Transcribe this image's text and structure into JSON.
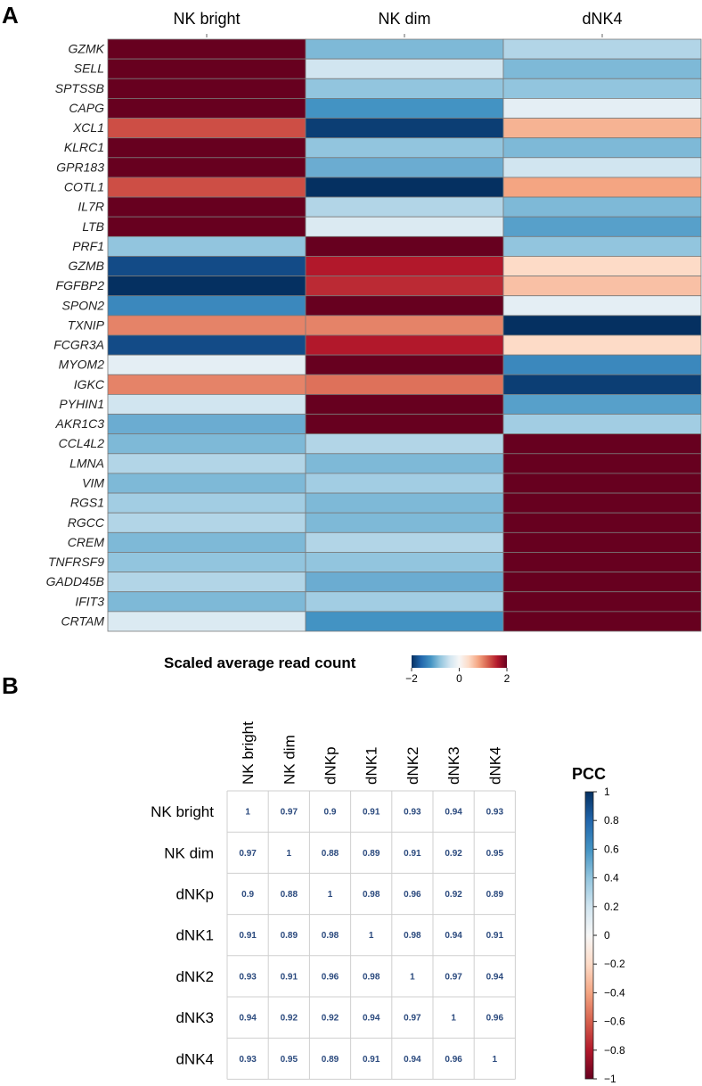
{
  "panels": {
    "a_label": "A",
    "b_label": "B"
  },
  "colors": {
    "scale": [
      "#67001F",
      "#B2182B",
      "#D6604D",
      "#F4A582",
      "#FDDBC7",
      "#F7F7F7",
      "#D1E5F0",
      "#92C5DE",
      "#4393C3",
      "#2166AC",
      "#053061"
    ],
    "grid_line": "#7a7a7a",
    "corr_text": "#2B4A7E",
    "corr_grid": "#cfcfcf"
  },
  "chart_data": [
    {
      "type": "heatmap",
      "title": "",
      "columns": [
        "NK bright",
        "NK dim",
        "dNK4"
      ],
      "rows": [
        "GZMK",
        "SELL",
        "SPTSSB",
        "CAPG",
        "XCL1",
        "KLRC1",
        "GPR183",
        "COTL1",
        "IL7R",
        "LTB",
        "PRF1",
        "GZMB",
        "FGFBP2",
        "SPON2",
        "TXNIP",
        "FCGR3A",
        "MYOM2",
        "IGKC",
        "PYHIN1",
        "AKR1C3",
        "CCL4L2",
        "LMNA",
        "VIM",
        "RGS1",
        "RGCC",
        "CREM",
        "TNFRSF9",
        "GADD45B",
        "IFIT3",
        "CRTAM"
      ],
      "values": [
        [
          2.0,
          -0.9,
          -0.6
        ],
        [
          2.0,
          -0.4,
          -0.9
        ],
        [
          2.0,
          -0.8,
          -0.8
        ],
        [
          2.0,
          -1.2,
          -0.2
        ],
        [
          1.3,
          -1.9,
          0.7
        ],
        [
          2.0,
          -0.8,
          -0.9
        ],
        [
          2.0,
          -1.0,
          -0.4
        ],
        [
          1.3,
          -2.0,
          0.8
        ],
        [
          2.0,
          -0.6,
          -0.9
        ],
        [
          2.0,
          -0.3,
          -1.1
        ],
        [
          -0.8,
          2.0,
          -0.8
        ],
        [
          -1.8,
          1.6,
          0.4
        ],
        [
          -2.0,
          1.5,
          0.6
        ],
        [
          -1.3,
          2.0,
          -0.2
        ],
        [
          1.0,
          1.0,
          -2.0
        ],
        [
          -1.8,
          1.6,
          0.4
        ],
        [
          -0.2,
          2.0,
          -1.3
        ],
        [
          1.0,
          1.1,
          -1.9
        ],
        [
          -0.4,
          2.0,
          -1.1
        ],
        [
          -1.0,
          2.0,
          -0.7
        ],
        [
          -0.9,
          -0.6,
          2.0
        ],
        [
          -0.6,
          -0.9,
          2.0
        ],
        [
          -0.9,
          -0.7,
          2.0
        ],
        [
          -0.7,
          -0.9,
          2.0
        ],
        [
          -0.6,
          -0.9,
          2.0
        ],
        [
          -0.9,
          -0.6,
          2.0
        ],
        [
          -0.8,
          -0.8,
          2.0
        ],
        [
          -0.6,
          -1.0,
          2.0
        ],
        [
          -0.9,
          -0.7,
          2.0
        ],
        [
          -0.3,
          -1.2,
          2.0
        ]
      ],
      "legend": {
        "title": "Scaled average read count",
        "ticks": [
          -2,
          0,
          2
        ],
        "tick_labels": [
          "−2",
          "0",
          "2"
        ],
        "range": [
          -2,
          2
        ],
        "placement": "bottom"
      }
    },
    {
      "type": "heatmap",
      "title": "",
      "labels": [
        "NK bright",
        "NK dim",
        "dNKp",
        "dNK1",
        "dNK2",
        "dNK3",
        "dNK4"
      ],
      "matrix": [
        [
          1,
          0.97,
          0.9,
          0.91,
          0.93,
          0.94,
          0.93
        ],
        [
          0.97,
          1,
          0.88,
          0.89,
          0.91,
          0.92,
          0.95
        ],
        [
          0.9,
          0.88,
          1,
          0.98,
          0.96,
          0.92,
          0.89
        ],
        [
          0.91,
          0.89,
          0.98,
          1,
          0.98,
          0.94,
          0.91
        ],
        [
          0.93,
          0.91,
          0.96,
          0.98,
          1,
          0.97,
          0.94
        ],
        [
          0.94,
          0.92,
          0.92,
          0.94,
          0.97,
          1,
          0.96
        ],
        [
          0.93,
          0.95,
          0.89,
          0.91,
          0.94,
          0.96,
          1
        ]
      ],
      "legend": {
        "title": "PCC",
        "range": [
          -1,
          1
        ],
        "ticks": [
          1,
          0.8,
          0.6,
          0.4,
          0.2,
          0,
          -0.2,
          -0.4,
          -0.6,
          -0.8,
          -1
        ],
        "tick_labels": [
          "1",
          "0.8",
          "0.6",
          "0.4",
          "0.2",
          "0",
          "−0.2",
          "−0.4",
          "−0.6",
          "−0.8",
          "−1"
        ],
        "placement": "right"
      }
    }
  ]
}
